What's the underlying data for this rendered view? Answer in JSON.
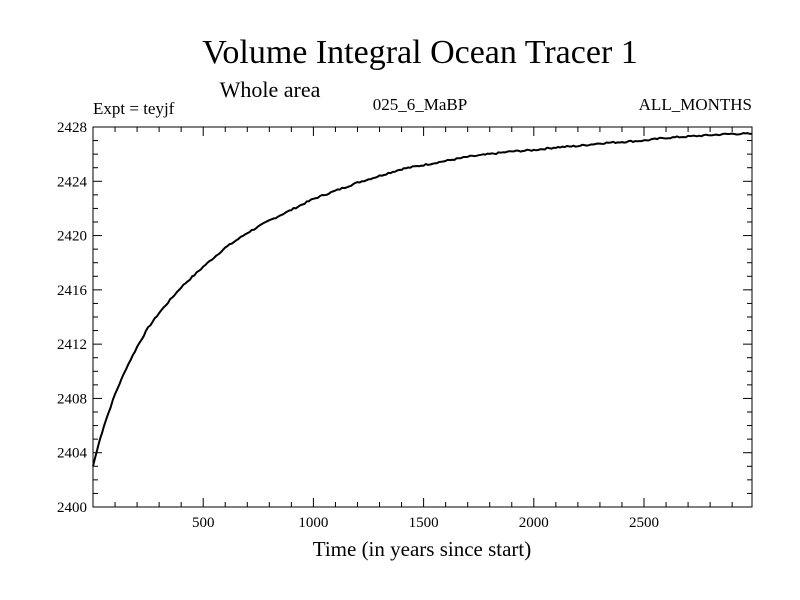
{
  "chart_data": {
    "type": "line",
    "title": "Volume Integral Ocean Tracer 1",
    "subtitle": "Whole area",
    "annotations": {
      "left": "Expt = teyjf",
      "center": "025_6_MaBP",
      "right": "ALL_MONTHS"
    },
    "xlabel": "Time (in years since start)",
    "ylabel": "",
    "xlim": [
      0,
      2990
    ],
    "ylim": [
      2400,
      2428
    ],
    "x_ticks": [
      500,
      1000,
      1500,
      2000,
      2500
    ],
    "y_ticks": [
      2400,
      2404,
      2408,
      2412,
      2416,
      2420,
      2424,
      2428
    ],
    "x_minor_step": 100,
    "y_minor_step": 1,
    "grid": false,
    "series": [
      {
        "name": "Volume Integral Ocean Tracer 1",
        "x": [
          0,
          25,
          50,
          100,
          150,
          200,
          250,
          300,
          400,
          500,
          600,
          700,
          800,
          900,
          1000,
          1100,
          1200,
          1300,
          1400,
          1500,
          1600,
          1700,
          1800,
          1900,
          2000,
          2100,
          2200,
          2300,
          2400,
          2500,
          2600,
          2700,
          2800,
          2900,
          2990
        ],
        "values": [
          2403.0,
          2404.6,
          2406.0,
          2408.3,
          2410.2,
          2411.8,
          2413.2,
          2414.3,
          2416.2,
          2417.7,
          2419.1,
          2420.2,
          2421.1,
          2421.9,
          2422.7,
          2423.3,
          2423.9,
          2424.4,
          2424.9,
          2425.2,
          2425.5,
          2425.8,
          2426.0,
          2426.2,
          2426.3,
          2426.5,
          2426.6,
          2426.8,
          2426.9,
          2427.0,
          2427.2,
          2427.3,
          2427.4,
          2427.5,
          2427.5
        ]
      }
    ]
  }
}
